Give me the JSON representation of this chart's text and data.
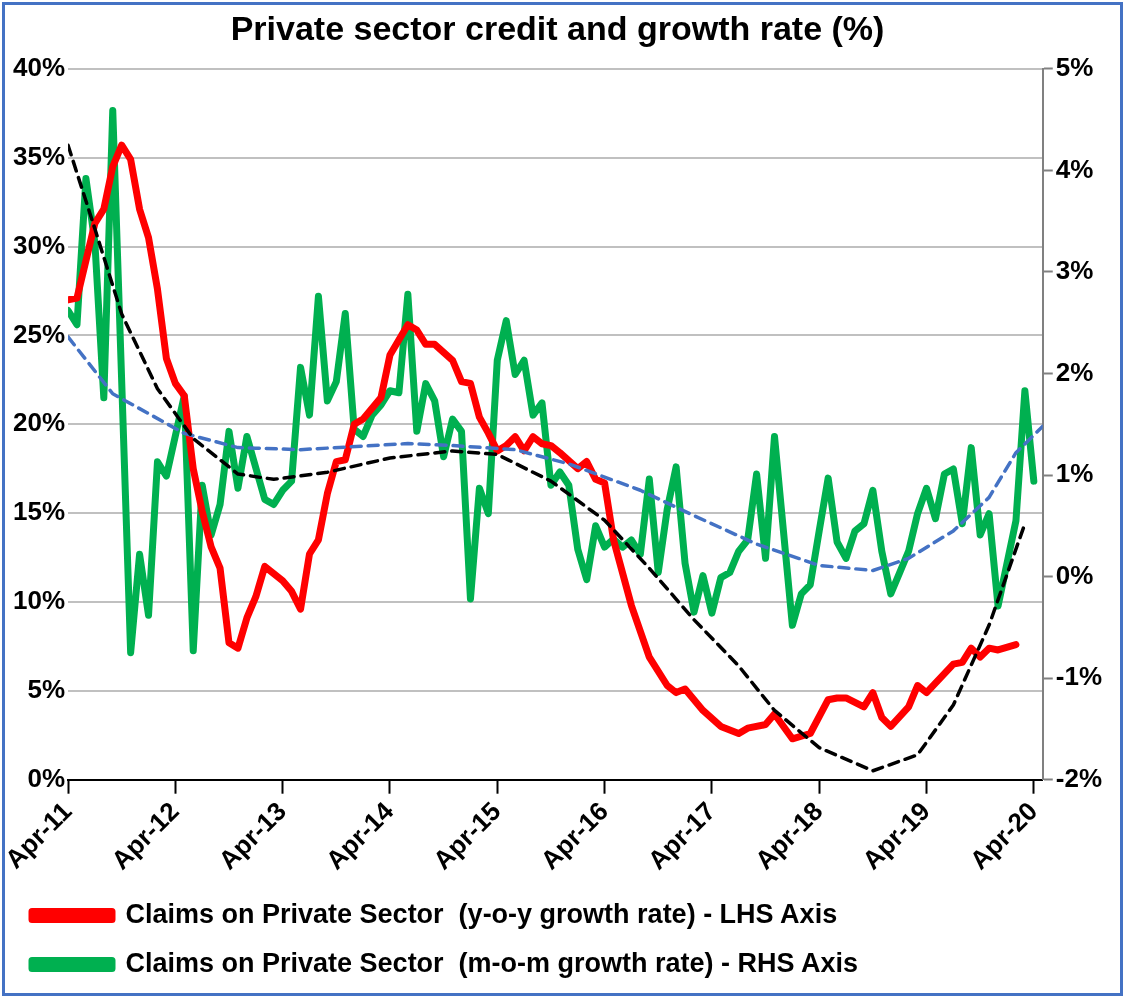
{
  "chart_data": {
    "type": "line",
    "title": "Private sector credit and growth rate (%)",
    "xlim": [
      "2011-04",
      "2020-05"
    ],
    "xticks": [
      {
        "value": "2011-04",
        "label": "Apr-11"
      },
      {
        "value": "2012-04",
        "label": "Apr-12"
      },
      {
        "value": "2013-04",
        "label": "Apr-13"
      },
      {
        "value": "2014-04",
        "label": "Apr-14"
      },
      {
        "value": "2015-04",
        "label": "Apr-15"
      },
      {
        "value": "2016-04",
        "label": "Apr-16"
      },
      {
        "value": "2017-04",
        "label": "Apr-17"
      },
      {
        "value": "2018-04",
        "label": "Apr-18"
      },
      {
        "value": "2019-04",
        "label": "Apr-19"
      },
      {
        "value": "2020-04",
        "label": "Apr-20"
      }
    ],
    "ylim": [
      0,
      40
    ],
    "yticks": [
      {
        "value": 0,
        "label": "0%"
      },
      {
        "value": 5,
        "label": "5%"
      },
      {
        "value": 10,
        "label": "10%"
      },
      {
        "value": 15,
        "label": "15%"
      },
      {
        "value": 20,
        "label": "20%"
      },
      {
        "value": 25,
        "label": "25%"
      },
      {
        "value": 30,
        "label": "30%"
      },
      {
        "value": 35,
        "label": "35%"
      },
      {
        "value": 40,
        "label": "40%"
      }
    ],
    "y2lim": [
      -2,
      5
    ],
    "y2ticks": [
      {
        "value": -2,
        "label": "-2%"
      },
      {
        "value": -1,
        "label": "-1%"
      },
      {
        "value": 0,
        "label": "0%"
      },
      {
        "value": 1,
        "label": "1%"
      },
      {
        "value": 2,
        "label": "2%"
      },
      {
        "value": 3,
        "label": "3%"
      },
      {
        "value": 4,
        "label": "4%"
      },
      {
        "value": 5,
        "label": "5%"
      }
    ],
    "grid": "y",
    "legend": "bottom",
    "marker": "none",
    "series": [
      {
        "name": "Claims on Private Sector  (y-o-y growth rate) - LHS Axis",
        "color": "#ff0000",
        "x": [
          "2011-04",
          "2011-05",
          "2011-07",
          "2011-08",
          "2011-09",
          "2011-10",
          "2011-11",
          "2011-12",
          "2012-01",
          "2012-02",
          "2012-03",
          "2012-04",
          "2012-05",
          "2012-06",
          "2012-07",
          "2012-08",
          "2012-09",
          "2012-10",
          "2012-11",
          "2012-12",
          "2013-01",
          "2013-02",
          "2013-04",
          "2013-05",
          "2013-06",
          "2013-07",
          "2013-08",
          "2013-09",
          "2013-10",
          "2013-11",
          "2013-12",
          "2014-01",
          "2014-03",
          "2014-04",
          "2014-06",
          "2014-07",
          "2014-08",
          "2014-09",
          "2014-11",
          "2014-12",
          "2015-01",
          "2015-02",
          "2015-03",
          "2015-04",
          "2015-05",
          "2015-06",
          "2015-07",
          "2015-08",
          "2015-09",
          "2015-10",
          "2015-11",
          "2016-01",
          "2016-02",
          "2016-03",
          "2016-04",
          "2016-05",
          "2016-07",
          "2016-09",
          "2016-11",
          "2016-12",
          "2017-01",
          "2017-03",
          "2017-05",
          "2017-07",
          "2017-08",
          "2017-10",
          "2017-11",
          "2018-01",
          "2018-03",
          "2018-05",
          "2018-06",
          "2018-07",
          "2018-09",
          "2018-10",
          "2018-11",
          "2018-12",
          "2019-02",
          "2019-03",
          "2019-04",
          "2019-07",
          "2019-08",
          "2019-09",
          "2019-10",
          "2019-11",
          "2019-12",
          "2020-02"
        ],
        "values": [
          27.0,
          27.1,
          31.3,
          32.1,
          34.5,
          35.7,
          34.9,
          32.1,
          30.5,
          27.6,
          23.7,
          22.3,
          21.6,
          17.5,
          15.1,
          13.1,
          11.9,
          7.7,
          7.4,
          9.1,
          10.3,
          12.0,
          11.2,
          10.6,
          9.6,
          12.7,
          13.5,
          16.1,
          17.9,
          18.0,
          20.0,
          20.3,
          21.5,
          23.9,
          25.6,
          25.3,
          24.5,
          24.5,
          23.6,
          22.4,
          22.3,
          20.4,
          19.5,
          18.5,
          18.8,
          19.3,
          18.5,
          19.3,
          18.9,
          18.8,
          18.4,
          17.5,
          17.9,
          16.9,
          16.7,
          13.5,
          9.8,
          6.9,
          5.3,
          4.9,
          5.1,
          3.9,
          3.0,
          2.6,
          2.9,
          3.1,
          3.7,
          2.3,
          2.6,
          4.5,
          4.6,
          4.6,
          4.1,
          4.9,
          3.5,
          3.0,
          4.1,
          5.3,
          4.9,
          6.5,
          6.6,
          7.4,
          6.9,
          7.4,
          7.3,
          7.6
        ]
      },
      {
        "name": "Claims on Private Sector  (m-o-m growth rate) - RHS Axis",
        "color": "#00b050",
        "axis": "y2",
        "x": [
          "2011-04",
          "2011-05",
          "2011-06",
          "2011-07",
          "2011-08",
          "2011-09",
          "2011-11",
          "2011-12",
          "2012-01",
          "2012-02",
          "2012-03",
          "2012-05",
          "2012-06",
          "2012-07",
          "2012-08",
          "2012-09",
          "2012-10",
          "2012-11",
          "2012-12",
          "2013-02",
          "2013-03",
          "2013-04",
          "2013-05",
          "2013-06",
          "2013-07",
          "2013-08",
          "2013-09",
          "2013-10",
          "2013-11",
          "2013-12",
          "2014-01",
          "2014-02",
          "2014-03",
          "2014-04",
          "2014-05",
          "2014-06",
          "2014-07",
          "2014-08",
          "2014-09",
          "2014-10",
          "2014-11",
          "2014-12",
          "2015-01",
          "2015-02",
          "2015-03",
          "2015-04",
          "2015-05",
          "2015-06",
          "2015-07",
          "2015-08",
          "2015-09",
          "2015-10",
          "2015-11",
          "2015-12",
          "2016-01",
          "2016-02",
          "2016-03",
          "2016-04",
          "2016-05",
          "2016-06",
          "2016-07",
          "2016-08",
          "2016-09",
          "2016-10",
          "2016-11",
          "2016-12",
          "2017-01",
          "2017-02",
          "2017-03",
          "2017-04",
          "2017-05",
          "2017-06",
          "2017-07",
          "2017-08",
          "2017-09",
          "2017-10",
          "2017-11",
          "2017-12",
          "2018-01",
          "2018-02",
          "2018-03",
          "2018-04",
          "2018-05",
          "2018-06",
          "2018-07",
          "2018-08",
          "2018-09",
          "2018-10",
          "2018-11",
          "2018-12",
          "2019-01",
          "2019-02",
          "2019-03",
          "2019-04",
          "2019-05",
          "2019-06",
          "2019-07",
          "2019-08",
          "2019-09",
          "2019-10",
          "2019-11",
          "2019-12",
          "2020-02",
          "2020-03",
          "2020-04"
        ],
        "values": [
          2.62,
          2.48,
          3.92,
          3.29,
          1.76,
          4.59,
          -0.75,
          0.22,
          -0.38,
          1.13,
          0.99,
          1.78,
          -0.73,
          0.9,
          0.41,
          0.71,
          1.43,
          0.87,
          1.38,
          0.76,
          0.71,
          0.85,
          0.94,
          2.06,
          1.59,
          2.76,
          1.73,
          1.92,
          2.59,
          1.45,
          1.38,
          1.59,
          1.69,
          1.83,
          1.81,
          2.78,
          1.43,
          1.9,
          1.73,
          1.18,
          1.55,
          1.43,
          -0.22,
          0.87,
          0.62,
          2.13,
          2.52,
          1.99,
          2.13,
          1.59,
          1.71,
          0.9,
          1.03,
          0.9,
          0.27,
          -0.03,
          0.5,
          0.29,
          0.37,
          0.29,
          0.36,
          0.22,
          0.96,
          0.04,
          0.66,
          1.08,
          0.13,
          -0.35,
          0.01,
          -0.36,
          -0.01,
          0.04,
          0.25,
          0.36,
          1.01,
          0.18,
          1.38,
          0.45,
          -0.48,
          -0.17,
          -0.08,
          0.45,
          0.97,
          0.34,
          0.18,
          0.45,
          0.52,
          0.85,
          0.25,
          -0.17,
          0.04,
          0.25,
          0.62,
          0.87,
          0.57,
          1.01,
          1.06,
          0.52,
          1.27,
          0.41,
          0.62,
          -0.29,
          0.55,
          1.83,
          0.94
        ]
      },
      {
        "type": "line",
        "color": "#000000",
        "line_style": "dashed",
        "x": [
          "2011-04",
          "2011-07",
          "2011-10",
          "2012-02",
          "2012-06",
          "2012-11",
          "2013-03",
          "2013-09",
          "2014-04",
          "2014-11",
          "2015-04",
          "2015-10",
          "2016-04",
          "2016-09",
          "2017-02",
          "2017-07",
          "2017-11",
          "2018-04",
          "2018-10",
          "2019-03",
          "2019-07",
          "2019-11",
          "2020-03"
        ],
        "values": [
          35.7,
          31.0,
          26.2,
          22.0,
          19.2,
          17.2,
          16.9,
          17.3,
          18.1,
          18.5,
          18.3,
          16.8,
          14.6,
          11.9,
          9.0,
          6.4,
          3.9,
          1.8,
          0.5,
          1.4,
          4.2,
          8.7,
          14.4
        ]
      },
      {
        "type": "line",
        "color": "#4472c4",
        "line_style": "dashed",
        "axis": "y2",
        "x": [
          "2011-04",
          "2011-09",
          "2012-05",
          "2012-11",
          "2013-06",
          "2014-06",
          "2014-11",
          "2015-06",
          "2015-12",
          "2016-08",
          "2017-02",
          "2017-09",
          "2018-04",
          "2018-10",
          "2019-02",
          "2019-07",
          "2019-11",
          "2020-02",
          "2020-05"
        ],
        "values": [
          2.36,
          1.8,
          1.41,
          1.27,
          1.25,
          1.31,
          1.29,
          1.25,
          1.11,
          0.85,
          0.6,
          0.32,
          0.11,
          0.06,
          0.18,
          0.45,
          0.78,
          1.22,
          1.48
        ]
      }
    ]
  }
}
